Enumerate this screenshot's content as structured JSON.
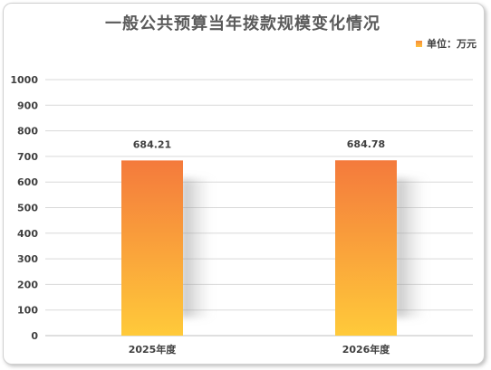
{
  "chart_data": {
    "type": "bar",
    "title": "一般公共预算当年拨款规模变化情况",
    "legend": {
      "label": "单位：万元",
      "placement": "top-right"
    },
    "categories": [
      "2025年度",
      "2026年度"
    ],
    "values": [
      684.21,
      684.78
    ],
    "data_labels": [
      "684.21",
      "684.78"
    ],
    "ylim": [
      0,
      1000
    ],
    "yticks": [
      0,
      100,
      200,
      300,
      400,
      500,
      600,
      700,
      800,
      900,
      1000
    ],
    "grid": true,
    "colors": {
      "bar_top": "#f47a3c",
      "bar_bottom": "#ffca3a",
      "grid": "#d9d9d9",
      "axis_text": "#404040"
    }
  }
}
